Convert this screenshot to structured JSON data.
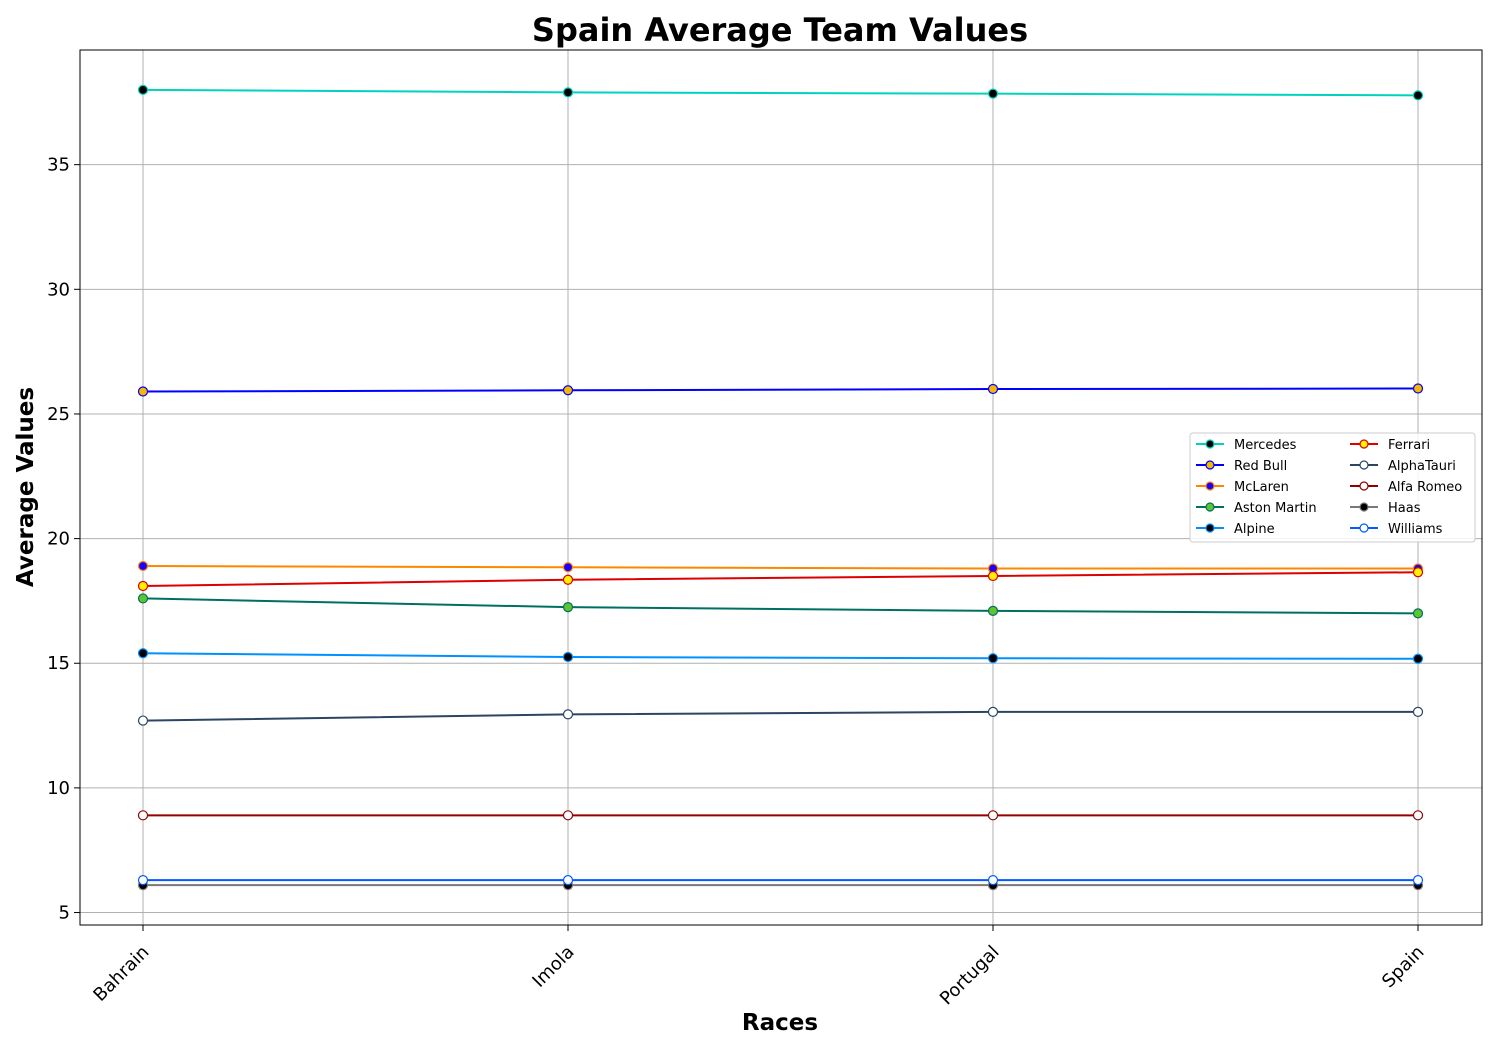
{
  "chart_data": {
    "type": "line",
    "title": "Spain Average Team Values",
    "xlabel": "Races",
    "ylabel": "Average Values",
    "categories": [
      "Bahrain",
      "Imola",
      "Portugal",
      "Spain"
    ],
    "ylim": [
      4.5,
      39.6
    ],
    "yticks": [
      5,
      10,
      15,
      20,
      25,
      30,
      35
    ],
    "grid": true,
    "legend_position": "center-right",
    "legend_columns": 2,
    "series": [
      {
        "name": "Mercedes",
        "values": [
          38.0,
          37.9,
          37.85,
          37.78
        ],
        "color": "#00d2be",
        "marker_fill": "#000000",
        "marker_edge": "#00d2be"
      },
      {
        "name": "Red Bull",
        "values": [
          25.9,
          25.95,
          26.0,
          26.02
        ],
        "color": "#0000ff",
        "marker_fill": "#f5b800",
        "marker_edge": "#0000ff"
      },
      {
        "name": "McLaren",
        "values": [
          18.9,
          18.85,
          18.8,
          18.8
        ],
        "color": "#ff8700",
        "marker_fill": "#1a00ff",
        "marker_edge": "#ff8700"
      },
      {
        "name": "Aston Martin",
        "values": [
          17.6,
          17.25,
          17.1,
          17.0
        ],
        "color": "#006f62",
        "marker_fill": "#5fc52e",
        "marker_edge": "#006f62"
      },
      {
        "name": "Alpine",
        "values": [
          15.4,
          15.25,
          15.2,
          15.18
        ],
        "color": "#0090ff",
        "marker_fill": "#000000",
        "marker_edge": "#0090ff"
      },
      {
        "name": "Ferrari",
        "values": [
          18.1,
          18.35,
          18.5,
          18.65
        ],
        "color": "#dc0000",
        "marker_fill": "#fff200",
        "marker_edge": "#dc0000"
      },
      {
        "name": "AlphaTauri",
        "values": [
          12.7,
          12.95,
          13.05,
          13.05
        ],
        "color": "#2b4562",
        "marker_fill": "#ffffff",
        "marker_edge": "#2b4562"
      },
      {
        "name": "Alfa Romeo",
        "values": [
          8.9,
          8.9,
          8.9,
          8.9
        ],
        "color": "#900000",
        "marker_fill": "#ffffff",
        "marker_edge": "#900000"
      },
      {
        "name": "Haas",
        "values": [
          6.1,
          6.1,
          6.1,
          6.1
        ],
        "color": "#787878",
        "marker_fill": "#000000",
        "marker_edge": "#787878"
      },
      {
        "name": "Williams",
        "values": [
          6.3,
          6.3,
          6.3,
          6.3
        ],
        "color": "#005aff",
        "marker_fill": "#ffffff",
        "marker_edge": "#005aff"
      }
    ]
  }
}
